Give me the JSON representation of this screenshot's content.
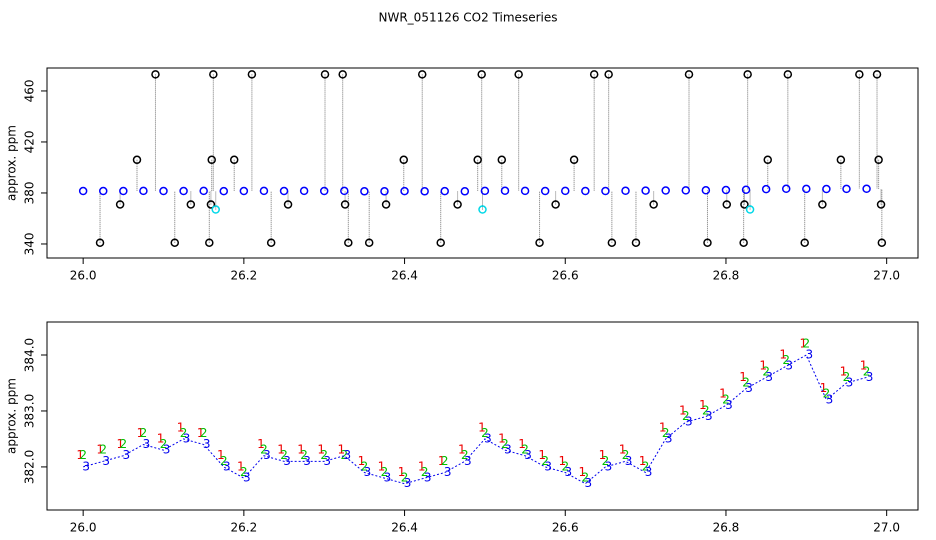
{
  "chart_data": [
    {
      "type": "scatter",
      "title": "NWR_051126  CO2 Timeseries",
      "y_label": "approx. ppm",
      "xlim": [
        25.955,
        27.039
      ],
      "ylim": [
        329,
        478
      ],
      "xticks": [
        {
          "value": 26,
          "label": "26.0"
        },
        {
          "value": 26.2,
          "label": "26.2"
        },
        {
          "value": 26.4,
          "label": "26.4"
        },
        {
          "value": 26.6,
          "label": "26.6"
        },
        {
          "value": 26.8,
          "label": "26.8"
        },
        {
          "value": 27,
          "label": "27.0"
        }
      ],
      "yticks": [
        340,
        380,
        420,
        460
      ],
      "series": [
        {
          "color": "#0000ff",
          "x": [
            26,
            26.025,
            26.05,
            26.075,
            26.1,
            26.125,
            26.15,
            26.175,
            26.2,
            26.225,
            26.25,
            26.275,
            26.3,
            26.325,
            26.35,
            26.375,
            26.4,
            26.425,
            26.45,
            26.475,
            26.5,
            26.525,
            26.55,
            26.575,
            26.6,
            26.625,
            26.65,
            26.675,
            26.7,
            26.725,
            26.75,
            26.775,
            26.8,
            26.825,
            26.85,
            26.875,
            26.9,
            26.925,
            26.95,
            26.975
          ],
          "values": [
            381.5,
            381.5,
            381.5,
            381.6,
            381.5,
            381.5,
            381.6,
            381.4,
            381.5,
            381.6,
            381.5,
            381.6,
            381.5,
            381.6,
            381.3,
            381.3,
            381.4,
            381.3,
            381.4,
            381.3,
            381.6,
            381.7,
            381.6,
            381.5,
            381.6,
            381.5,
            381.5,
            381.7,
            381.8,
            381.9,
            382.0,
            382.1,
            382.3,
            382.5,
            383.0,
            383.3,
            383.2,
            383.1,
            383.2,
            383.3
          ]
        },
        {
          "color": "#000000",
          "x": [
            26.021,
            26.046,
            26.067,
            26.09,
            26.114,
            26.134,
            26.157,
            26.159,
            26.16,
            26.162,
            26.188,
            26.21,
            26.234,
            26.255,
            26.301,
            26.323,
            26.326,
            26.33,
            26.356,
            26.377,
            26.399,
            26.422,
            26.445,
            26.466,
            26.491,
            26.496,
            26.521,
            26.542,
            26.568,
            26.588,
            26.611,
            26.636,
            26.654,
            26.658,
            26.688,
            26.71,
            26.754,
            26.777,
            26.801,
            26.822,
            26.823,
            26.827,
            26.852,
            26.877,
            26.898,
            26.92,
            26.943,
            26.966,
            26.988,
            26.99,
            26.993,
            26.994
          ],
          "values": [
            341,
            371,
            406,
            473,
            341,
            371,
            341,
            371,
            406,
            473,
            406,
            473,
            341,
            371,
            473,
            473,
            371,
            341,
            341,
            371,
            406,
            473,
            341,
            371,
            406,
            473,
            406,
            473,
            341,
            371,
            406,
            473,
            473,
            341,
            341,
            371,
            473,
            341,
            371,
            341,
            371,
            473,
            406,
            473,
            341,
            371,
            406,
            473,
            473,
            406,
            371,
            341
          ]
        },
        {
          "color": "#00d8e8",
          "x": [
            26.165,
            26.497,
            26.83
          ],
          "values": [
            367,
            367,
            367
          ]
        }
      ]
    },
    {
      "type": "text-scatter",
      "y_label": "approx. ppm",
      "xlim": [
        25.955,
        27.039
      ],
      "ylim": [
        381.23,
        384.59
      ],
      "xticks": [
        {
          "value": 26,
          "label": "26.0"
        },
        {
          "value": 26.2,
          "label": "26.2"
        },
        {
          "value": 26.4,
          "label": "26.4"
        },
        {
          "value": 26.6,
          "label": "26.6"
        },
        {
          "value": 26.8,
          "label": "26.8"
        },
        {
          "value": 27,
          "label": "27.0"
        }
      ],
      "yticks": [
        {
          "value": 382,
          "label": "382.0"
        },
        {
          "value": 383,
          "label": "383.0"
        },
        {
          "value": 384,
          "label": "384.0"
        }
      ],
      "x": [
        26,
        26.025,
        26.05,
        26.075,
        26.1,
        26.125,
        26.15,
        26.175,
        26.2,
        26.225,
        26.25,
        26.275,
        26.3,
        26.325,
        26.35,
        26.375,
        26.4,
        26.425,
        26.45,
        26.475,
        26.5,
        26.525,
        26.55,
        26.575,
        26.6,
        26.625,
        26.65,
        26.675,
        26.7,
        26.725,
        26.75,
        26.775,
        26.8,
        26.825,
        26.85,
        26.875,
        26.9,
        26.925,
        26.95,
        26.975
      ],
      "series": [
        {
          "name": "1",
          "color": "#ee0000",
          "values": [
            382.2,
            382.3,
            382.4,
            382.6,
            382.5,
            382.7,
            382.6,
            382.2,
            382.0,
            382.4,
            382.3,
            382.3,
            382.3,
            382.3,
            382.1,
            382.0,
            381.9,
            382.0,
            382.1,
            382.3,
            382.7,
            382.5,
            382.4,
            382.2,
            382.1,
            381.9,
            382.2,
            382.3,
            382.1,
            382.7,
            383.0,
            383.1,
            383.3,
            383.6,
            383.8,
            384.0,
            384.2,
            383.4,
            383.7,
            383.8
          ]
        },
        {
          "name": "2",
          "color": "#00c000",
          "values": [
            382.2,
            382.3,
            382.4,
            382.6,
            382.4,
            382.6,
            382.6,
            382.1,
            381.9,
            382.3,
            382.2,
            382.2,
            382.2,
            382.2,
            382.0,
            381.9,
            381.8,
            381.9,
            382.1,
            382.2,
            382.6,
            382.4,
            382.3,
            382.1,
            382.0,
            381.8,
            382.1,
            382.2,
            382.0,
            382.6,
            382.9,
            383.0,
            383.2,
            383.5,
            383.7,
            383.9,
            384.2,
            383.3,
            383.6,
            383.7
          ]
        },
        {
          "name": "3",
          "color": "#0000ee",
          "line": true,
          "values": [
            382.0,
            382.1,
            382.2,
            382.4,
            382.3,
            382.5,
            382.4,
            382.0,
            381.8,
            382.2,
            382.1,
            382.1,
            382.1,
            382.2,
            381.9,
            381.8,
            381.7,
            381.8,
            381.9,
            382.1,
            382.5,
            382.3,
            382.2,
            382.0,
            381.9,
            381.7,
            382.0,
            382.1,
            381.9,
            382.5,
            382.8,
            382.9,
            383.1,
            383.4,
            383.6,
            383.8,
            384.0,
            383.2,
            383.5,
            383.6
          ]
        }
      ]
    }
  ]
}
